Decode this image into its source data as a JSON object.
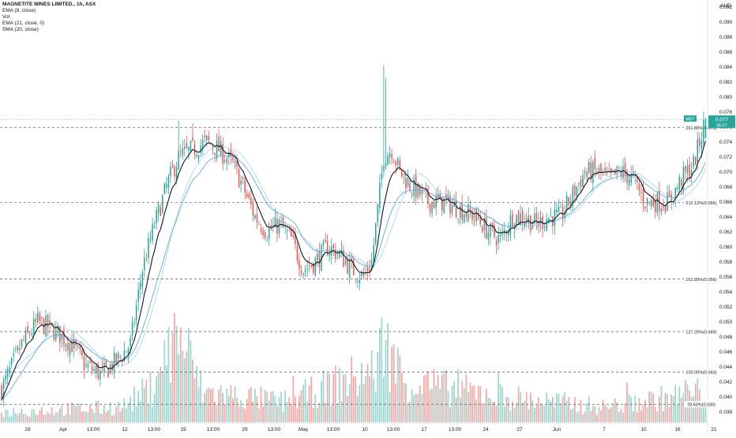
{
  "header": {
    "title": "MAGNETITE MINES LIMITED., 1h, ASX",
    "indicators": [
      "EMA (8, close)",
      "Vol",
      "EMA (21, close, 0)",
      "SMA (20, close)"
    ]
  },
  "price_axis": {
    "currency": "AUD",
    "tick_labels": [
      "0.092",
      "0.090",
      "0.088",
      "0.086",
      "0.084",
      "0.082",
      "0.080",
      "0.078",
      "0.076",
      "0.074",
      "0.072",
      "0.070",
      "0.068",
      "0.066",
      "0.064",
      "0.062",
      "0.060",
      "0.058",
      "0.056",
      "0.054",
      "0.052",
      "0.050",
      "0.048",
      "0.046",
      "0.044",
      "0.042",
      "0.040",
      "0.038"
    ],
    "last_price": {
      "symbol": "MGT",
      "price": "0.077",
      "countdown": "36:57"
    }
  },
  "time_axis": {
    "labels": [
      "29",
      "Apr",
      "13:00",
      "12",
      "13:00",
      "19",
      "13:00",
      "29",
      "13:00",
      "May",
      "13:00",
      "10",
      "13:00",
      "17",
      "13:00",
      "24",
      "27",
      "Jun",
      "7",
      "10",
      "16",
      "21"
    ]
  },
  "colors": {
    "up": "#26a69a",
    "down": "#ef5350",
    "ema8": "#131722",
    "ema21": "#4fa3e0",
    "sma20": "#9fd6ea",
    "level": "#555555"
  },
  "chart_data": {
    "type": "candlestick",
    "title": "MAGNETITE MINES LIMITED., 1h, ASX",
    "ylim": [
      0.0365,
      0.0925
    ],
    "y_unit": "AUD",
    "fib_levels": [
      {
        "label": "261.80%(0.076)",
        "value": 0.0759
      },
      {
        "label": "212.12%(0.066)",
        "value": 0.0659
      },
      {
        "label": "161.80%(0.056)",
        "value": 0.0557
      },
      {
        "label": "127.20%(0.049)",
        "value": 0.0487
      },
      {
        "label": "100.00%(0.043)",
        "value": 0.0433
      },
      {
        "label": "78.60%(0.039)",
        "value": 0.039
      }
    ],
    "price_key_points": [
      [
        0,
        0.041
      ],
      [
        10,
        0.047
      ],
      [
        18,
        0.05
      ],
      [
        25,
        0.049
      ],
      [
        35,
        0.047
      ],
      [
        42,
        0.044
      ],
      [
        50,
        0.043
      ],
      [
        58,
        0.045
      ],
      [
        64,
        0.047
      ],
      [
        70,
        0.057
      ],
      [
        76,
        0.063
      ],
      [
        82,
        0.068
      ],
      [
        88,
        0.072
      ],
      [
        95,
        0.073
      ],
      [
        102,
        0.074
      ],
      [
        108,
        0.073
      ],
      [
        115,
        0.071
      ],
      [
        120,
        0.068
      ],
      [
        126,
        0.064
      ],
      [
        132,
        0.062
      ],
      [
        138,
        0.063
      ],
      [
        144,
        0.061
      ],
      [
        150,
        0.057
      ],
      [
        156,
        0.058
      ],
      [
        162,
        0.06
      ],
      [
        168,
        0.059
      ],
      [
        174,
        0.057
      ],
      [
        180,
        0.056
      ],
      [
        184,
        0.058
      ],
      [
        190,
        0.072
      ],
      [
        194,
        0.073
      ],
      [
        198,
        0.07
      ],
      [
        204,
        0.068
      ],
      [
        212,
        0.066
      ],
      [
        220,
        0.066
      ],
      [
        228,
        0.065
      ],
      [
        236,
        0.064
      ],
      [
        242,
        0.062
      ],
      [
        248,
        0.061
      ],
      [
        254,
        0.064
      ],
      [
        260,
        0.064
      ],
      [
        266,
        0.063
      ],
      [
        272,
        0.064
      ],
      [
        278,
        0.064
      ],
      [
        284,
        0.067
      ],
      [
        290,
        0.07
      ],
      [
        296,
        0.07
      ],
      [
        302,
        0.069
      ],
      [
        308,
        0.07
      ],
      [
        314,
        0.069
      ],
      [
        320,
        0.066
      ],
      [
        326,
        0.066
      ],
      [
        332,
        0.066
      ],
      [
        338,
        0.069
      ],
      [
        344,
        0.071
      ],
      [
        350,
        0.077
      ]
    ],
    "volume_scale": "relative",
    "volume_key_points": [
      [
        0,
        0.1
      ],
      [
        60,
        0.15
      ],
      [
        75,
        0.35
      ],
      [
        88,
        0.9
      ],
      [
        100,
        0.3
      ],
      [
        140,
        0.2
      ],
      [
        185,
        0.5
      ],
      [
        190,
        0.8
      ],
      [
        200,
        0.4
      ],
      [
        250,
        0.25
      ],
      [
        300,
        0.15
      ],
      [
        350,
        0.3
      ]
    ]
  }
}
